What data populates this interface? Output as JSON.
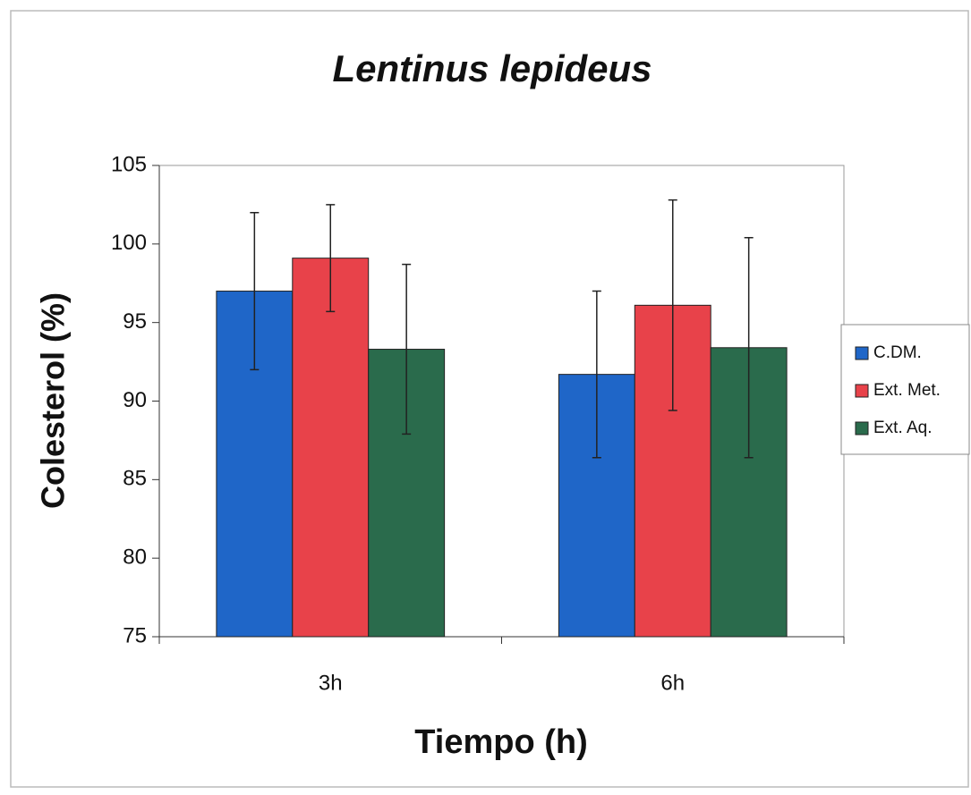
{
  "chart_data": {
    "type": "bar",
    "title": "Lentinus lepideus",
    "xlabel": "Tiempo (h)",
    "ylabel": "Colesterol (%)",
    "categories": [
      "3h",
      "6h"
    ],
    "series": [
      {
        "name": "C.DM.",
        "color": "#1f66c8",
        "values": [
          97.0,
          91.7
        ],
        "error": [
          5.0,
          5.3
        ]
      },
      {
        "name": "Ext. Met.",
        "color": "#e8424a",
        "values": [
          99.1,
          96.1
        ],
        "error": [
          3.4,
          6.7
        ]
      },
      {
        "name": "Ext. Aq.",
        "color": "#2a6b4c",
        "values": [
          93.3,
          93.4
        ],
        "error": [
          5.4,
          7.0
        ]
      }
    ],
    "ylim": [
      75,
      105
    ],
    "yticks": [
      75,
      80,
      85,
      90,
      95,
      100,
      105
    ],
    "legend": "right"
  }
}
